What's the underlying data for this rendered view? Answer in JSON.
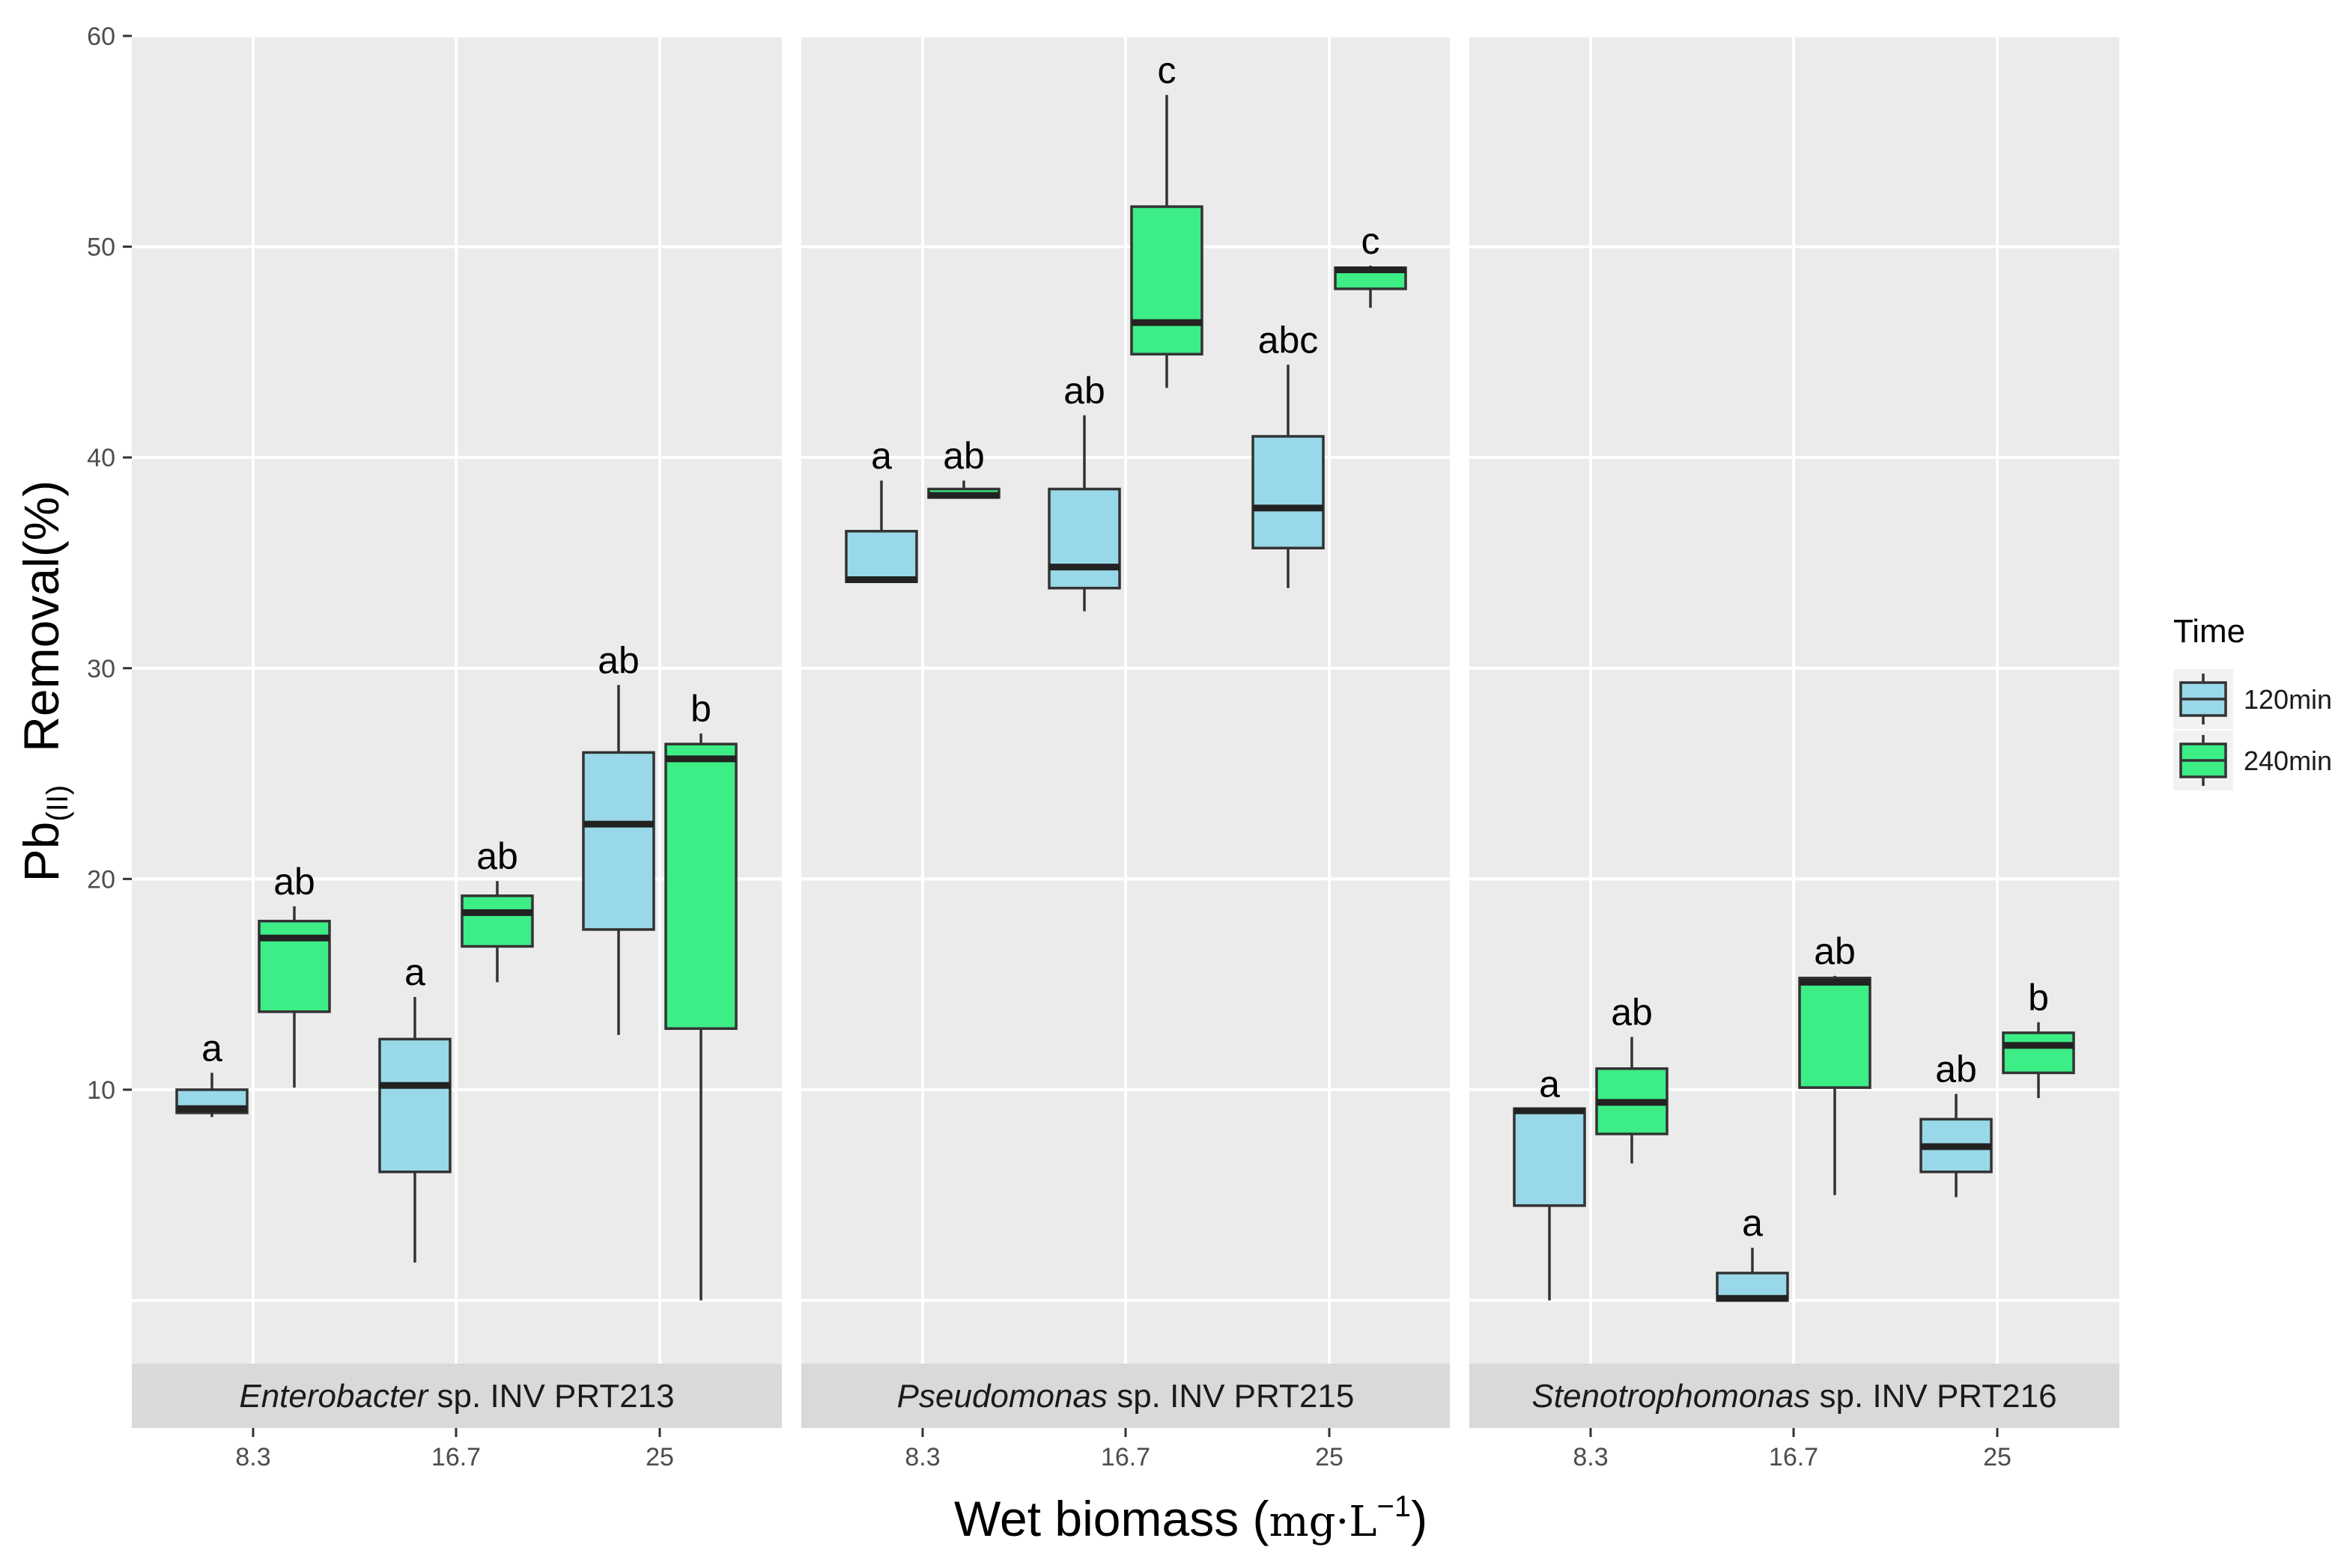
{
  "chart_data": {
    "type": "boxplot",
    "facets": [
      {
        "label_italic": "Enterobacter",
        "label_rest": " sp. INV PRT213"
      },
      {
        "label_italic": "Pseudomonas",
        "label_rest": " sp. INV PRT215"
      },
      {
        "label_italic": "Stenotrophomonas",
        "label_rest": " sp. INV PRT216"
      }
    ],
    "categories": [
      "8.3",
      "16.7",
      "25"
    ],
    "x_title": "Wet biomass (",
    "x_unit": "mg·L",
    "x_unit_exp": "−1",
    "x_close": ")",
    "y_title_main": "Pb",
    "y_title_sub": "(II)",
    "y_title_rest": "Removal(%)",
    "y_ticks": [
      10,
      20,
      30,
      40,
      50,
      60
    ],
    "y_ticks_labels": [
      "10",
      "20",
      "30",
      "40",
      "50",
      "60"
    ],
    "ylim": [
      -3,
      60
    ],
    "legend": {
      "title": "Time",
      "entries": [
        {
          "label": "120min",
          "color": "#99d8e8"
        },
        {
          "label": "240min",
          "color": "#3ded86"
        }
      ]
    },
    "boxes": [
      {
        "facet": 0,
        "cat": 0,
        "series": 0,
        "min": 8.7,
        "q1": 8.9,
        "median": 9.1,
        "q3": 10.0,
        "max": 10.8,
        "label": "a"
      },
      {
        "facet": 0,
        "cat": 0,
        "series": 1,
        "min": 10.1,
        "q1": 13.7,
        "median": 17.2,
        "q3": 18.0,
        "max": 18.7,
        "label": "ab"
      },
      {
        "facet": 0,
        "cat": 1,
        "series": 0,
        "min": 1.8,
        "q1": 6.1,
        "median": 10.2,
        "q3": 12.4,
        "max": 14.4,
        "label": "a"
      },
      {
        "facet": 0,
        "cat": 1,
        "series": 1,
        "min": 15.1,
        "q1": 16.8,
        "median": 18.4,
        "q3": 19.2,
        "max": 19.9,
        "label": "ab"
      },
      {
        "facet": 0,
        "cat": 2,
        "series": 0,
        "min": 12.6,
        "q1": 17.6,
        "median": 22.6,
        "q3": 26.0,
        "max": 29.2,
        "label": "ab"
      },
      {
        "facet": 0,
        "cat": 2,
        "series": 1,
        "min": 0.0,
        "q1": 12.9,
        "median": 25.7,
        "q3": 26.4,
        "max": 26.9,
        "label": "b"
      },
      {
        "facet": 1,
        "cat": 0,
        "series": 0,
        "min": 34.1,
        "q1": 34.1,
        "median": 34.2,
        "q3": 36.5,
        "max": 38.9,
        "label": "a"
      },
      {
        "facet": 1,
        "cat": 0,
        "series": 1,
        "min": 38.1,
        "q1": 38.1,
        "median": 38.2,
        "q3": 38.5,
        "max": 38.9,
        "label": "ab"
      },
      {
        "facet": 1,
        "cat": 1,
        "series": 0,
        "min": 32.7,
        "q1": 33.8,
        "median": 34.8,
        "q3": 38.5,
        "max": 42.0,
        "label": "ab"
      },
      {
        "facet": 1,
        "cat": 1,
        "series": 1,
        "min": 43.3,
        "q1": 44.9,
        "median": 46.4,
        "q3": 51.9,
        "max": 57.2,
        "label": "c"
      },
      {
        "facet": 1,
        "cat": 2,
        "series": 0,
        "min": 33.8,
        "q1": 35.7,
        "median": 37.6,
        "q3": 41.0,
        "max": 44.4,
        "label": "abc"
      },
      {
        "facet": 1,
        "cat": 2,
        "series": 1,
        "min": 47.1,
        "q1": 48.0,
        "median": 48.9,
        "q3": 49.0,
        "max": 49.1,
        "label": "c"
      },
      {
        "facet": 2,
        "cat": 0,
        "series": 0,
        "min": 0.0,
        "q1": 4.5,
        "median": 9.0,
        "q3": 9.1,
        "max": 9.1,
        "label": "a"
      },
      {
        "facet": 2,
        "cat": 0,
        "series": 1,
        "min": 6.5,
        "q1": 7.9,
        "median": 9.4,
        "q3": 11.0,
        "max": 12.5,
        "label": "ab"
      },
      {
        "facet": 2,
        "cat": 1,
        "series": 0,
        "min": 0.0,
        "q1": 0.0,
        "median": 0.1,
        "q3": 1.3,
        "max": 2.5,
        "label": "a"
      },
      {
        "facet": 2,
        "cat": 1,
        "series": 1,
        "min": 5.0,
        "q1": 10.1,
        "median": 15.1,
        "q3": 15.3,
        "max": 15.4,
        "label": "ab"
      },
      {
        "facet": 2,
        "cat": 2,
        "series": 0,
        "min": 4.9,
        "q1": 6.1,
        "median": 7.3,
        "q3": 8.6,
        "max": 9.8,
        "label": "ab"
      },
      {
        "facet": 2,
        "cat": 2,
        "series": 1,
        "min": 9.6,
        "q1": 10.8,
        "median": 12.1,
        "q3": 12.7,
        "max": 13.2,
        "label": "b"
      }
    ]
  }
}
